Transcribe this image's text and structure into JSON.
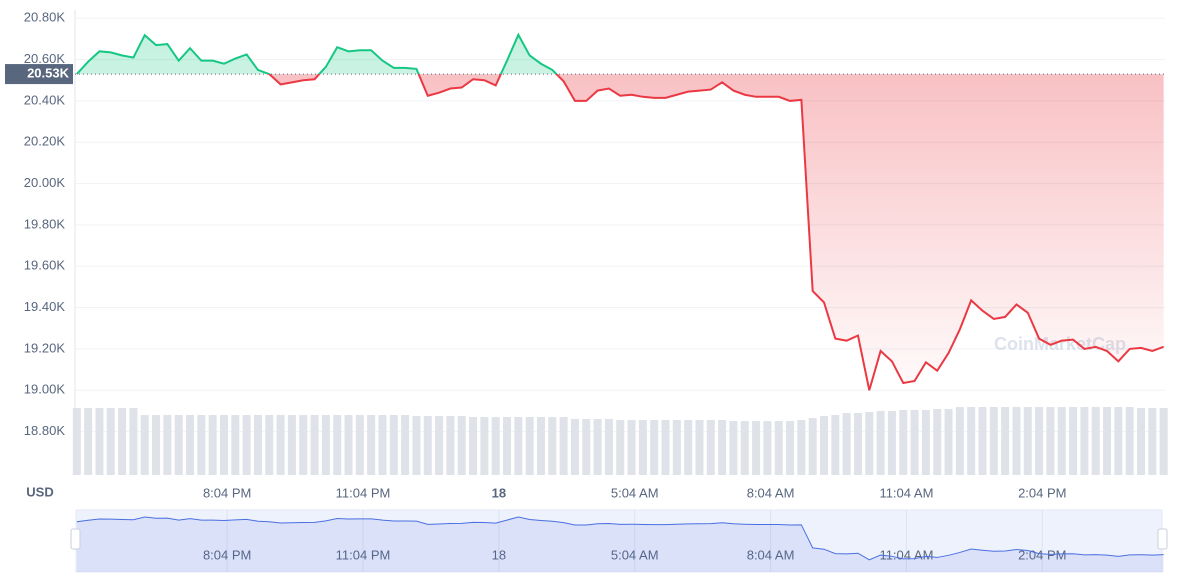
{
  "chart_data": {
    "type": "line",
    "currency": "USD",
    "watermark": "CoinMarketCap",
    "x": [
      16.75,
      17,
      17.25,
      17.5,
      17.75,
      18,
      18.25,
      18.5,
      18.75,
      19,
      19.25,
      19.5,
      19.75,
      20,
      20.25,
      20.5,
      20.75,
      21,
      21.25,
      21.5,
      21.75,
      22,
      22.25,
      22.5,
      22.75,
      23,
      23.25,
      23.5,
      23.75,
      24,
      24.25,
      24.5,
      24.75,
      25,
      25.25,
      25.5,
      25.75,
      26,
      26.25,
      26.5,
      26.75,
      27,
      27.25,
      27.5,
      27.75,
      28,
      28.25,
      28.5,
      28.75,
      29,
      29.25,
      29.5,
      29.75,
      30,
      30.25,
      30.5,
      30.75,
      31,
      31.25,
      31.5,
      31.75,
      32,
      32.25,
      32.5,
      32.75,
      33,
      33.25,
      33.5,
      33.75,
      34,
      34.25,
      34.5,
      34.75,
      35,
      35.25,
      35.5,
      35.75,
      36,
      36.25,
      36.5,
      36.75,
      37,
      37.25,
      37.5,
      37.75,
      38,
      38.25,
      38.5,
      38.75,
      39,
      39.25,
      39.5,
      39.75,
      40,
      40.25,
      40.5,
      40.75
    ],
    "series": [
      {
        "values": [
          20530,
          20590,
          20640,
          20635,
          20620,
          20610,
          20718,
          20670,
          20675,
          20595,
          20655,
          20595,
          20595,
          20580,
          20605,
          20625,
          20550,
          20530,
          20480,
          20490,
          20500,
          20505,
          20565,
          20660,
          20640,
          20645,
          20645,
          20595,
          20560,
          20560,
          20555,
          20425,
          20440,
          20460,
          20465,
          20505,
          20500,
          20475,
          20595,
          20720,
          20620,
          20580,
          20550,
          20495,
          20400,
          20400,
          20450,
          20460,
          20425,
          20430,
          20420,
          20415,
          20415,
          20430,
          20445,
          20450,
          20455,
          20490,
          20450,
          20430,
          20420,
          20420,
          20420,
          20400,
          20405,
          19480,
          19425,
          19250,
          19240,
          19265,
          19000,
          19190,
          19140,
          19035,
          19045,
          19135,
          19095,
          19180,
          19295,
          19435,
          19385,
          19345,
          19355,
          19415,
          19375,
          19250,
          19220,
          19240,
          19245,
          19200,
          19210,
          19190,
          19140,
          19200,
          19205,
          19190,
          19210
        ]
      }
    ],
    "volume": [
      67,
      67,
      67,
      67,
      67,
      67,
      60,
      60,
      60,
      60,
      60,
      60,
      60,
      60,
      60,
      60,
      60,
      60,
      60,
      60,
      60,
      60,
      60,
      60,
      60,
      60,
      60,
      60,
      60,
      60,
      59,
      59,
      59,
      59,
      59,
      58,
      58,
      58,
      58,
      58,
      58,
      58,
      58,
      58,
      56,
      56,
      56,
      56,
      55,
      55,
      55,
      55,
      55,
      55,
      55,
      55,
      55,
      55,
      54,
      54,
      54,
      54,
      54,
      54,
      55,
      57,
      59,
      60,
      62,
      62,
      63,
      64,
      64,
      65,
      65,
      65,
      66,
      66,
      68,
      68,
      68,
      68,
      68,
      68,
      68,
      68,
      68,
      68,
      68,
      68,
      68,
      68,
      68,
      68,
      67,
      67,
      67
    ],
    "reference": {
      "value": 20530,
      "label": "20.53K"
    },
    "up_color": "#16c784",
    "down_color": "#ea3943",
    "volume_color": "#dfe2e8",
    "navigator_color": "#4b6fe0",
    "xlim": [
      16.71,
      40.78
    ],
    "xticks": [
      {
        "value": 20.07,
        "label": "8:04 PM"
      },
      {
        "value": 23.07,
        "label": "11:04 PM"
      },
      {
        "value": 26.07,
        "label": "18"
      },
      {
        "value": 29.07,
        "label": "5:04 AM"
      },
      {
        "value": 32.07,
        "label": "8:04 AM"
      },
      {
        "value": 35.07,
        "label": "11:04 AM"
      },
      {
        "value": 38.07,
        "label": "2:04 PM"
      }
    ],
    "ylim": [
      18590,
      20840
    ],
    "yticks": [
      {
        "value": 20800,
        "label": "20.80K"
      },
      {
        "value": 20600,
        "label": "20.60K"
      },
      {
        "value": 20400,
        "label": "20.40K"
      },
      {
        "value": 20200,
        "label": "20.20K"
      },
      {
        "value": 20000,
        "label": "20.00K"
      },
      {
        "value": 19800,
        "label": "19.80K"
      },
      {
        "value": 19600,
        "label": "19.60K"
      },
      {
        "value": 19400,
        "label": "19.40K"
      },
      {
        "value": 19200,
        "label": "19.20K"
      },
      {
        "value": 19000,
        "label": "19.00K"
      },
      {
        "value": 18800,
        "label": "18.80K"
      }
    ],
    "grid": true
  }
}
